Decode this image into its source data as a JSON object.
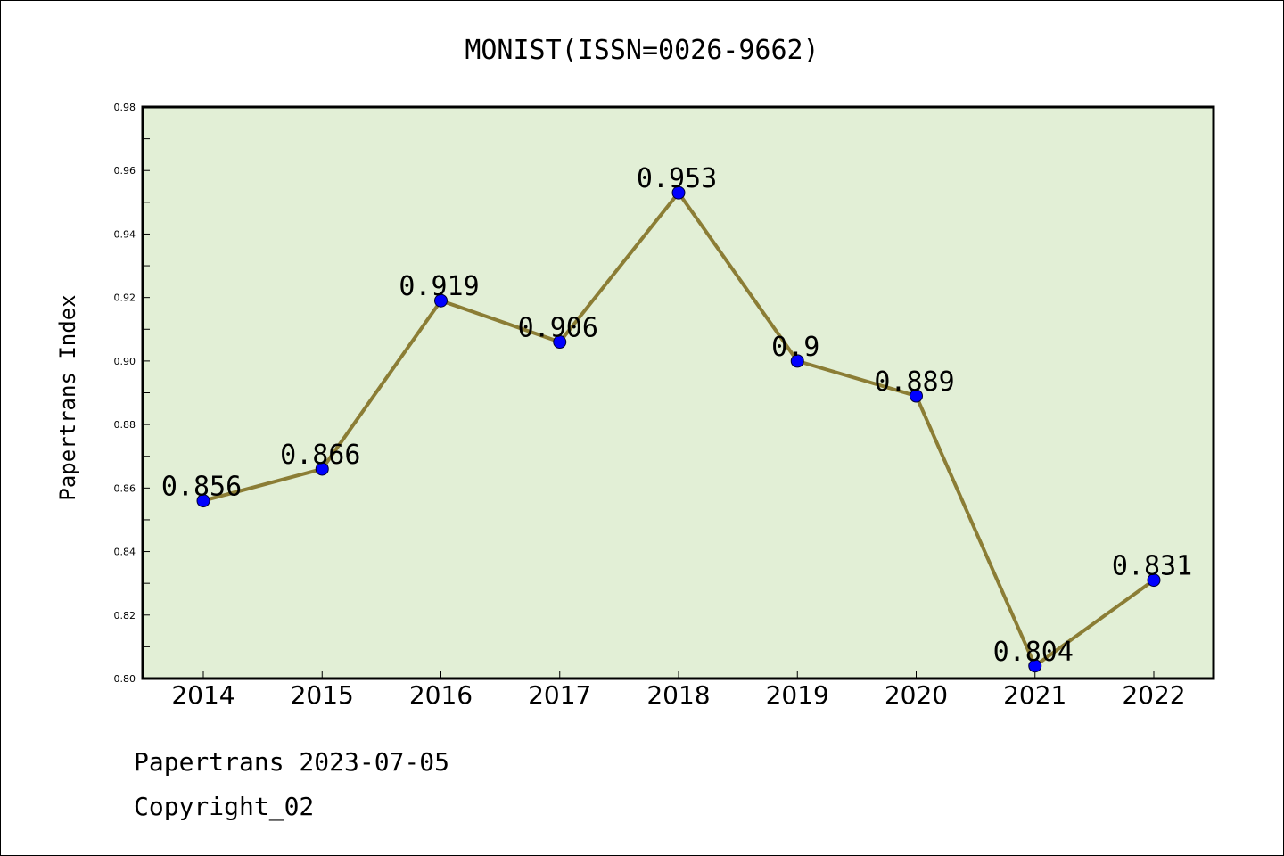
{
  "chart_data": {
    "type": "line",
    "title": "MONIST(ISSN=0026-9662)",
    "ylabel": "Papertrans Index",
    "xlabel": "",
    "categories": [
      "2014",
      "2015",
      "2016",
      "2017",
      "2018",
      "2019",
      "2020",
      "2021",
      "2022"
    ],
    "values": [
      0.856,
      0.866,
      0.919,
      0.906,
      0.953,
      0.9,
      0.889,
      0.804,
      0.831
    ],
    "data_labels": [
      "0.856",
      "0.866",
      "0.919",
      "0.906",
      "0.953",
      "0.9",
      "0.889",
      "0.804",
      "0.831"
    ],
    "ylim": [
      0.8,
      0.98
    ],
    "yticks": [
      "0.80",
      "0.82",
      "0.84",
      "0.86",
      "0.88",
      "0.90",
      "0.92",
      "0.94",
      "0.96",
      "0.98"
    ],
    "grid": false,
    "legend": "none",
    "colors": {
      "line": "#8b7d35",
      "marker": "#0000ff",
      "plot_background": "#e2efd6"
    }
  },
  "footer": {
    "line1": "Papertrans 2023-07-05",
    "line2": "Copyright_02"
  }
}
